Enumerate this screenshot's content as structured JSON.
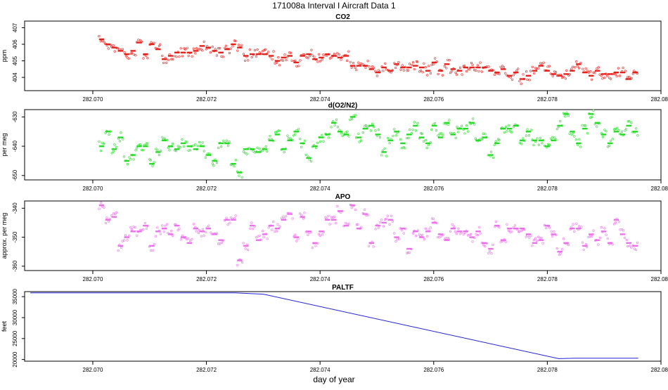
{
  "figure": {
    "title": "171008a   Interval I Aircraft Data 1",
    "xlabel": "day of year"
  },
  "chart_data": [
    {
      "type": "scatter",
      "title": "CO2",
      "ylabel": "ppm",
      "color": "#e8201a",
      "xlim": [
        282.0688,
        282.08
      ],
      "ylim": [
        403.2,
        407.4
      ],
      "xticks": [
        282.07,
        282.072,
        282.074,
        282.076,
        282.078,
        282.08
      ],
      "xtick_labels": [
        "282.070",
        "282.072",
        "282.074",
        "282.076",
        "282.078",
        "282.080"
      ],
      "yticks": [
        404,
        405,
        406,
        407
      ],
      "ytick_labels": [
        "404",
        "405",
        "406",
        "407"
      ],
      "x_start": 282.0701,
      "x_end": 282.0796,
      "segment_means": [
        406.3,
        406.0,
        405.8,
        405.6,
        405.4,
        405.6,
        406.1,
        405.4,
        406.0,
        405.7,
        405.1,
        405.3,
        405.5,
        405.5,
        405.5,
        405.6,
        405.9,
        405.8,
        405.6,
        405.5,
        405.7,
        406.0,
        405.8,
        405.3,
        405.4,
        405.4,
        405.4,
        405.3,
        405.0,
        405.2,
        405.3,
        404.9,
        405.3,
        405.4,
        405.1,
        405.2,
        405.4,
        405.3,
        405.2,
        405.3,
        404.7,
        404.7,
        404.7,
        404.5,
        404.3,
        404.6,
        404.4,
        404.8,
        404.6,
        404.6,
        404.7,
        404.6,
        404.4,
        404.9,
        404.4,
        404.8,
        404.5,
        404.4,
        404.6,
        404.6,
        404.6,
        404.6,
        404.4,
        404.3,
        404.5,
        404.1,
        404.3,
        403.9,
        404.1,
        404.4,
        404.7,
        404.4,
        404.2,
        404.1,
        404.2,
        404.4,
        404.8,
        404.3,
        404.1,
        404.4,
        404.2,
        404.2,
        404.3,
        404.3,
        403.9,
        404.3
      ]
    },
    {
      "type": "scatter",
      "title": "d(O2/N2)",
      "ylabel": "per meg",
      "color": "#22dd22",
      "xlim": [
        282.0688,
        282.08
      ],
      "ylim": [
        -651.5,
        -627.5
      ],
      "xticks": [
        282.07,
        282.072,
        282.074,
        282.076,
        282.078,
        282.08
      ],
      "xtick_labels": [
        "282.070",
        "282.072",
        "282.074",
        "282.076",
        "282.078",
        "282.080"
      ],
      "yticks": [
        -650,
        -640,
        -630
      ],
      "ytick_labels": [
        "-650",
        "-640",
        "-630"
      ],
      "x_start": 282.0701,
      "x_end": 282.0796,
      "segment_means": [
        -640,
        -635,
        -641,
        -637,
        -645,
        -643,
        -640,
        -640,
        -646,
        -642,
        -638,
        -640,
        -641,
        -639,
        -640,
        -641,
        -640,
        -643,
        -645,
        -639,
        -639,
        -646,
        -649,
        -641,
        -641,
        -642,
        -641,
        -638,
        -636,
        -641,
        -638,
        -635,
        -639,
        -644,
        -640,
        -637,
        -636,
        -632,
        -635,
        -636,
        -630,
        -637,
        -634,
        -633,
        -636,
        -642,
        -638,
        -635,
        -639,
        -636,
        -633,
        -637,
        -639,
        -633,
        -637,
        -632,
        -636,
        -634,
        -634,
        -632,
        -638,
        -637,
        -643,
        -639,
        -634,
        -634,
        -633,
        -638,
        -635,
        -638,
        -638,
        -640,
        -638,
        -633,
        -629,
        -635,
        -639,
        -634,
        -629,
        -632,
        -636,
        -639,
        -635,
        -636,
        -633,
        -635
      ]
    },
    {
      "type": "scatter",
      "title": "APO",
      "ylabel": "approx. per meg",
      "color": "#ee6fee",
      "xlim": [
        282.0688,
        282.08
      ],
      "ylim": [
        -361.5,
        -337.5
      ],
      "xticks": [
        282.07,
        282.072,
        282.074,
        282.076,
        282.078,
        282.08
      ],
      "xtick_labels": [
        "282.070",
        "282.072",
        "282.074",
        "282.076",
        "282.078",
        "282.080"
      ],
      "yticks": [
        -360,
        -350,
        -340
      ],
      "ytick_labels": [
        "-360",
        "-350",
        "-340"
      ],
      "x_start": 282.0701,
      "x_end": 282.0796,
      "segment_means": [
        -339,
        -344,
        -343,
        -353,
        -350,
        -348,
        -348,
        -346,
        -353,
        -348,
        -347,
        -349,
        -346,
        -350,
        -352,
        -347,
        -348,
        -347,
        -349,
        -351,
        -344,
        -344,
        -358,
        -353,
        -346,
        -351,
        -349,
        -346,
        -347,
        -344,
        -342,
        -350,
        -343,
        -348,
        -352,
        -348,
        -344,
        -344,
        -341,
        -346,
        -339,
        -347,
        -342,
        -352,
        -346,
        -345,
        -344,
        -350,
        -347,
        -354,
        -348,
        -350,
        -348,
        -345,
        -349,
        -351,
        -347,
        -348,
        -348,
        -350,
        -348,
        -352,
        -354,
        -346,
        -351,
        -347,
        -347,
        -347,
        -349,
        -352,
        -351,
        -346,
        -349,
        -355,
        -352,
        -347,
        -347,
        -353,
        -349,
        -351,
        -348,
        -352,
        -344,
        -349,
        -352,
        -353
      ]
    },
    {
      "type": "line",
      "title": "PALTF",
      "ylabel": "feet",
      "color": "#2020dd",
      "xlim": [
        282.0688,
        282.08
      ],
      "ylim": [
        19600,
        36200
      ],
      "xticks": [
        282.07,
        282.072,
        282.074,
        282.076,
        282.078,
        282.08
      ],
      "xtick_labels": [
        "282.070",
        "282.072",
        "282.074",
        "282.076",
        "282.078",
        "282.080"
      ],
      "yticks": [
        20000,
        25000,
        30000,
        35000
      ],
      "ytick_labels": [
        "20000",
        "25000",
        "30000",
        "35000"
      ],
      "x": [
        282.0689,
        282.0725,
        282.0726,
        282.073,
        282.0782,
        282.0785,
        282.0796
      ],
      "y": [
        35900,
        35900,
        35850,
        35600,
        20200,
        20300,
        20300
      ]
    }
  ]
}
